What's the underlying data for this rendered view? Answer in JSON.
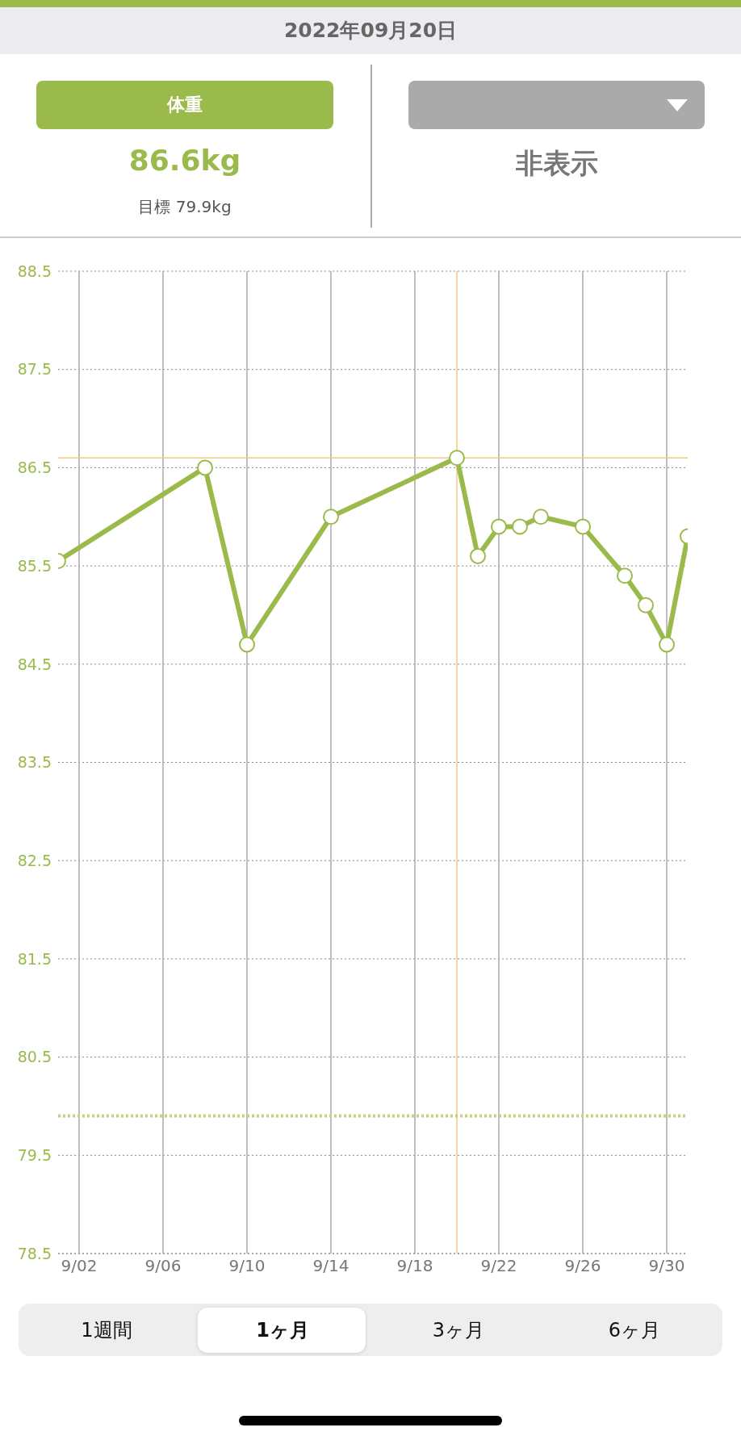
{
  "chart_data": {
    "type": "line",
    "title": "2022年09月20日",
    "subtitle": "体重",
    "annotations": [
      "86.6kg",
      "目標 79.9kg",
      "非表示",
      "1週間",
      "1ヶ月",
      "3ヶ月",
      "6ヶ月"
    ],
    "x": [
      "2022-09-01",
      "2022-09-08",
      "2022-09-10",
      "2022-09-14",
      "2022-09-20",
      "2022-09-21",
      "2022-09-22",
      "2022-09-23",
      "2022-09-24",
      "2022-09-26",
      "2022-09-28",
      "2022-09-29",
      "2022-09-30",
      "2022-10-01"
    ],
    "series": [
      {
        "color": "#9aba4c",
        "values": [
          85.55,
          86.5,
          84.7,
          86.0,
          86.6,
          85.6,
          85.9,
          85.9,
          86.0,
          85.9,
          85.4,
          85.1,
          84.7,
          85.8
        ]
      }
    ],
    "xlim": [
      "2022-09-01",
      "2022-10-01"
    ],
    "xticks": [
      {
        "value": "2022-09-02",
        "label": "9/02"
      },
      {
        "value": "2022-09-06",
        "label": "9/06"
      },
      {
        "value": "2022-09-10",
        "label": "9/10"
      },
      {
        "value": "2022-09-14",
        "label": "9/14"
      },
      {
        "value": "2022-09-18",
        "label": "9/18"
      },
      {
        "value": "2022-09-22",
        "label": "9/22"
      },
      {
        "value": "2022-09-26",
        "label": "9/26"
      },
      {
        "value": "2022-09-30",
        "label": "9/30"
      }
    ],
    "ylim": [
      78.5,
      88.5
    ],
    "yticks": [
      78.5,
      79.5,
      80.5,
      81.5,
      82.5,
      83.5,
      84.5,
      85.5,
      86.5,
      87.5,
      88.5
    ],
    "ref_lines": [
      {
        "axis": "y",
        "value": 86.6,
        "color": "#f5c77e"
      },
      {
        "axis": "x",
        "value": "2022-09-20",
        "color": "#f5c77e"
      },
      {
        "axis": "y",
        "value": 79.9,
        "color": "#bcd682",
        "line_style": "dotted"
      }
    ],
    "grid": true,
    "marker": "circle",
    "line_style": "solid"
  }
}
